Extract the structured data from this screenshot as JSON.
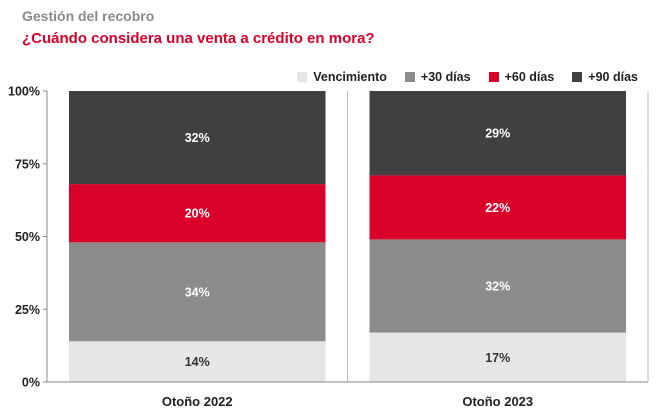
{
  "header": {
    "subtitle": "Gestión del recobro",
    "title": "¿Cuándo considera una venta a crédito en mora?"
  },
  "chart_data": {
    "type": "bar",
    "stacked": true,
    "categories": [
      "Otoño 2022",
      "Otoño 2023"
    ],
    "series": [
      {
        "name": "Vencimiento",
        "color": "#e6e6e6",
        "label_color": "#333333",
        "values": [
          14,
          17
        ]
      },
      {
        "name": "+30 días",
        "color": "#8c8c8c",
        "label_color": "#ffffff",
        "values": [
          34,
          32
        ]
      },
      {
        "name": "+60 días",
        "color": "#d9002a",
        "label_color": "#ffffff",
        "values": [
          20,
          22
        ]
      },
      {
        "name": "+90 días",
        "color": "#404040",
        "label_color": "#ffffff",
        "values": [
          32,
          29
        ]
      }
    ],
    "ylim": [
      0,
      100
    ],
    "yticks": [
      0,
      25,
      50,
      75,
      100
    ],
    "ytick_labels": [
      "0%",
      "25%",
      "50%",
      "75%",
      "100%"
    ],
    "value_suffix": "%",
    "legend_position": "top-right",
    "grid": false
  }
}
